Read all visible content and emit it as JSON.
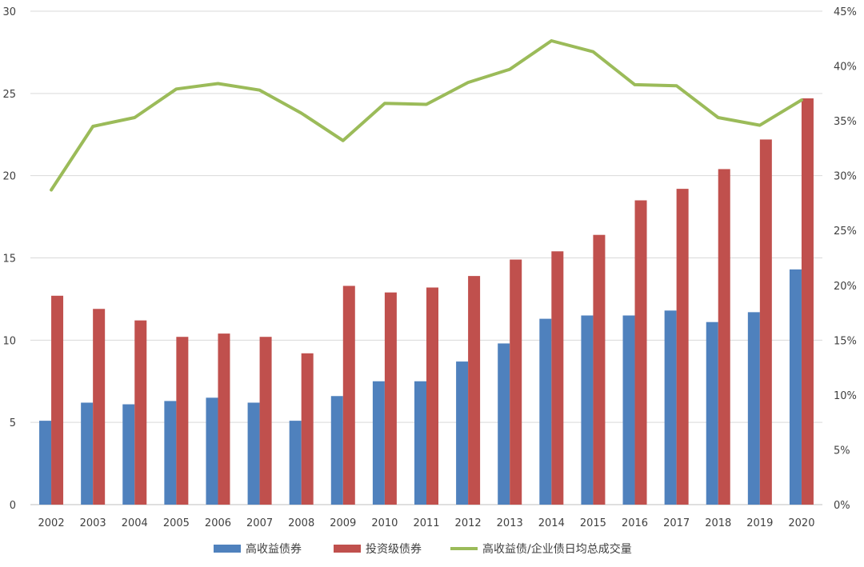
{
  "chart_data": {
    "type": "bar",
    "categories": [
      "2002",
      "2003",
      "2004",
      "2005",
      "2006",
      "2007",
      "2008",
      "2009",
      "2010",
      "2011",
      "2012",
      "2013",
      "2014",
      "2015",
      "2016",
      "2017",
      "2018",
      "2019",
      "2020"
    ],
    "series": [
      {
        "name": "高收益债券",
        "type": "bar",
        "axis": "left",
        "color": "#4f81bd",
        "values": [
          5.1,
          6.2,
          6.1,
          6.3,
          6.5,
          6.2,
          5.1,
          6.6,
          7.5,
          7.5,
          8.7,
          9.8,
          11.3,
          11.5,
          11.5,
          11.8,
          11.1,
          11.7,
          14.3
        ]
      },
      {
        "name": "投资级债券",
        "type": "bar",
        "axis": "left",
        "color": "#c0504d",
        "values": [
          12.7,
          11.9,
          11.2,
          10.2,
          10.4,
          10.2,
          9.2,
          13.3,
          12.9,
          13.2,
          13.9,
          14.9,
          15.4,
          16.4,
          18.5,
          19.2,
          20.4,
          22.2,
          24.7
        ]
      },
      {
        "name": "高收益债/企业债日均总成交量",
        "type": "line",
        "axis": "right",
        "color": "#9bbb59",
        "values": [
          0.287,
          0.345,
          0.353,
          0.379,
          0.384,
          0.378,
          0.357,
          0.332,
          0.366,
          0.365,
          0.385,
          0.397,
          0.423,
          0.413,
          0.383,
          0.382,
          0.353,
          0.346,
          0.369
        ]
      }
    ],
    "y_left": {
      "ylim": [
        0,
        30
      ],
      "ticks": [
        "0",
        "5",
        "10",
        "15",
        "20",
        "25",
        "30"
      ]
    },
    "y_right": {
      "ylim": [
        0,
        0.45
      ],
      "ticks": [
        "0%",
        "5%",
        "10%",
        "15%",
        "20%",
        "25%",
        "30%",
        "35%",
        "40%",
        "45%"
      ]
    },
    "grid": true,
    "legend_position": "bottom"
  }
}
